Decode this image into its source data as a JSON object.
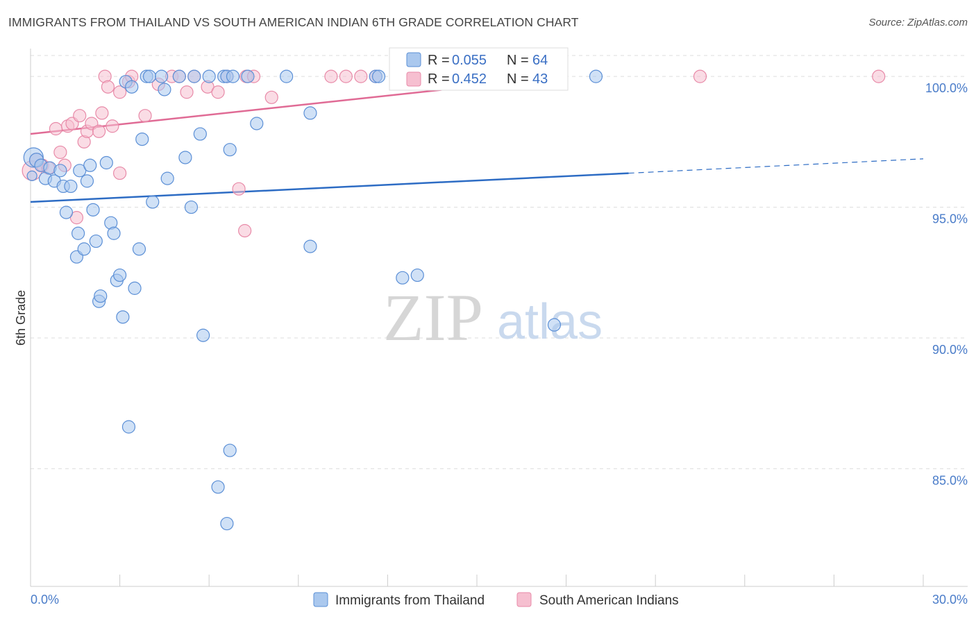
{
  "header": {
    "title": "IMMIGRANTS FROM THAILAND VS SOUTH AMERICAN INDIAN 6TH GRADE CORRELATION CHART",
    "source": "Source: ZipAtlas.com"
  },
  "watermark": {
    "zip": "ZIP",
    "atlas": "atlas"
  },
  "colors": {
    "blue_fill": "#aac8ee",
    "blue_stroke": "#5b8fd6",
    "blue_line": "#2d6cc4",
    "pink_fill": "#f6bfd0",
    "pink_stroke": "#e88aa8",
    "pink_line": "#e06b95",
    "grid": "#dddddd",
    "tick_text": "#4a7cc9"
  },
  "legend": {
    "rows": [
      {
        "r_label": "R =",
        "r_value": "0.055",
        "n_label": "N =",
        "n_value": "64"
      },
      {
        "r_label": "R =",
        "r_value": "0.452",
        "n_label": "N =",
        "n_value": "43"
      }
    ]
  },
  "chart_data": {
    "type": "scatter",
    "title": "IMMIGRANTS FROM THAILAND VS SOUTH AMERICAN INDIAN 6TH GRADE CORRELATION CHART",
    "xlabel": "",
    "ylabel": "6th Grade",
    "xlim": [
      0,
      30
    ],
    "ylim": [
      80.5,
      100.8
    ],
    "x_tick_labels": [
      "0.0%",
      "30.0%"
    ],
    "y_ticks": [
      85,
      90,
      95,
      100
    ],
    "y_tick_labels": [
      "85.0%",
      "90.0%",
      "95.0%",
      "100.0%"
    ],
    "legend_position": "bottom-center",
    "series": [
      {
        "name": "Immigrants from Thailand",
        "color": "blue",
        "r": 0.055,
        "n": 64,
        "trend": {
          "x0": 0,
          "y0": 95.2,
          "x1": 20.1,
          "y1": 96.3,
          "dash_x1": 30,
          "dash_y1": 96.85
        },
        "points": [
          [
            0.1,
            96.9,
            14
          ],
          [
            0.2,
            96.8,
            10
          ],
          [
            0.35,
            96.6,
            9
          ],
          [
            0.5,
            96.1,
            9
          ],
          [
            0.65,
            96.5,
            9
          ],
          [
            0.8,
            96.0,
            9
          ],
          [
            1.0,
            96.4,
            9
          ],
          [
            1.1,
            95.8,
            9
          ],
          [
            1.2,
            94.8,
            9
          ],
          [
            1.35,
            95.8,
            9
          ],
          [
            1.55,
            93.1,
            9
          ],
          [
            1.6,
            94.0,
            9
          ],
          [
            1.65,
            96.4,
            9
          ],
          [
            1.8,
            93.4,
            9
          ],
          [
            1.9,
            96.0,
            9
          ],
          [
            2.0,
            96.6,
            9
          ],
          [
            2.1,
            94.9,
            9
          ],
          [
            2.2,
            93.7,
            9
          ],
          [
            2.3,
            91.4,
            9
          ],
          [
            2.35,
            91.6,
            9
          ],
          [
            2.55,
            96.7,
            9
          ],
          [
            2.7,
            94.4,
            9
          ],
          [
            2.8,
            94.0,
            9
          ],
          [
            2.9,
            92.2,
            9
          ],
          [
            3.0,
            92.4,
            9
          ],
          [
            3.1,
            90.8,
            9
          ],
          [
            3.2,
            99.8,
            9
          ],
          [
            3.3,
            86.6,
            9
          ],
          [
            3.4,
            99.6,
            9
          ],
          [
            3.5,
            91.9,
            9
          ],
          [
            3.65,
            93.4,
            9
          ],
          [
            3.75,
            97.6,
            9
          ],
          [
            3.9,
            100.0,
            9
          ],
          [
            4.0,
            100.0,
            9
          ],
          [
            4.1,
            95.2,
            9
          ],
          [
            4.4,
            100.0,
            9
          ],
          [
            4.5,
            99.5,
            9
          ],
          [
            4.6,
            96.1,
            9
          ],
          [
            5.0,
            100.0,
            9
          ],
          [
            5.2,
            96.9,
            9
          ],
          [
            5.4,
            95.0,
            9
          ],
          [
            5.5,
            100.0,
            9
          ],
          [
            5.7,
            97.8,
            9
          ],
          [
            5.8,
            90.1,
            9
          ],
          [
            6.0,
            100.0,
            9
          ],
          [
            6.3,
            84.3,
            9
          ],
          [
            6.5,
            100.0,
            9
          ],
          [
            6.6,
            100.0,
            9
          ],
          [
            6.7,
            97.2,
            9
          ],
          [
            6.8,
            100.0,
            9
          ],
          [
            6.6,
            82.9,
            9
          ],
          [
            6.7,
            85.7,
            9
          ],
          [
            7.3,
            100.0,
            9
          ],
          [
            7.6,
            98.2,
            9
          ],
          [
            8.6,
            100.0,
            9
          ],
          [
            9.4,
            98.6,
            9
          ],
          [
            9.4,
            93.5,
            9
          ],
          [
            11.6,
            100.0,
            9
          ],
          [
            11.7,
            100.0,
            9
          ],
          [
            12.5,
            92.3,
            9
          ],
          [
            13.0,
            92.4,
            9
          ],
          [
            17.6,
            90.5,
            9
          ],
          [
            19.0,
            100.0,
            9
          ],
          [
            0.05,
            96.2,
            7
          ]
        ]
      },
      {
        "name": "South American Indians",
        "color": "pink",
        "r": 0.452,
        "n": 43,
        "trend": {
          "x0": 0,
          "y0": 97.8,
          "x1": 18.0,
          "y1": 100.0
        },
        "points": [
          [
            0.05,
            96.4,
            14
          ],
          [
            0.2,
            96.8,
            10
          ],
          [
            0.4,
            96.6,
            9
          ],
          [
            0.6,
            96.5,
            9
          ],
          [
            0.85,
            98.0,
            9
          ],
          [
            1.0,
            97.1,
            9
          ],
          [
            1.15,
            96.6,
            9
          ],
          [
            1.25,
            98.1,
            9
          ],
          [
            1.4,
            98.2,
            9
          ],
          [
            1.55,
            94.6,
            9
          ],
          [
            1.65,
            98.5,
            9
          ],
          [
            1.8,
            97.5,
            9
          ],
          [
            1.9,
            97.9,
            9
          ],
          [
            2.05,
            98.2,
            9
          ],
          [
            2.3,
            97.9,
            9
          ],
          [
            2.4,
            98.6,
            9
          ],
          [
            2.5,
            100.0,
            9
          ],
          [
            2.6,
            99.6,
            9
          ],
          [
            2.75,
            98.1,
            9
          ],
          [
            3.0,
            99.4,
            9
          ],
          [
            3.0,
            96.3,
            9
          ],
          [
            3.3,
            99.8,
            9
          ],
          [
            3.4,
            100.0,
            9
          ],
          [
            3.85,
            98.5,
            9
          ],
          [
            4.3,
            99.7,
            9
          ],
          [
            4.75,
            100.0,
            9
          ],
          [
            5.0,
            100.0,
            9
          ],
          [
            5.25,
            99.4,
            9
          ],
          [
            5.5,
            100.0,
            9
          ],
          [
            5.95,
            99.6,
            9
          ],
          [
            6.3,
            99.4,
            9
          ],
          [
            6.6,
            100.0,
            9
          ],
          [
            7.0,
            95.7,
            9
          ],
          [
            7.2,
            94.1,
            9
          ],
          [
            7.25,
            100.0,
            9
          ],
          [
            7.5,
            100.0,
            9
          ],
          [
            8.1,
            99.2,
            9
          ],
          [
            10.1,
            100.0,
            9
          ],
          [
            10.6,
            100.0,
            9
          ],
          [
            11.1,
            100.0,
            9
          ],
          [
            11.6,
            100.0,
            9
          ],
          [
            22.5,
            100.0,
            9
          ],
          [
            28.5,
            100.0,
            9
          ]
        ]
      }
    ]
  }
}
